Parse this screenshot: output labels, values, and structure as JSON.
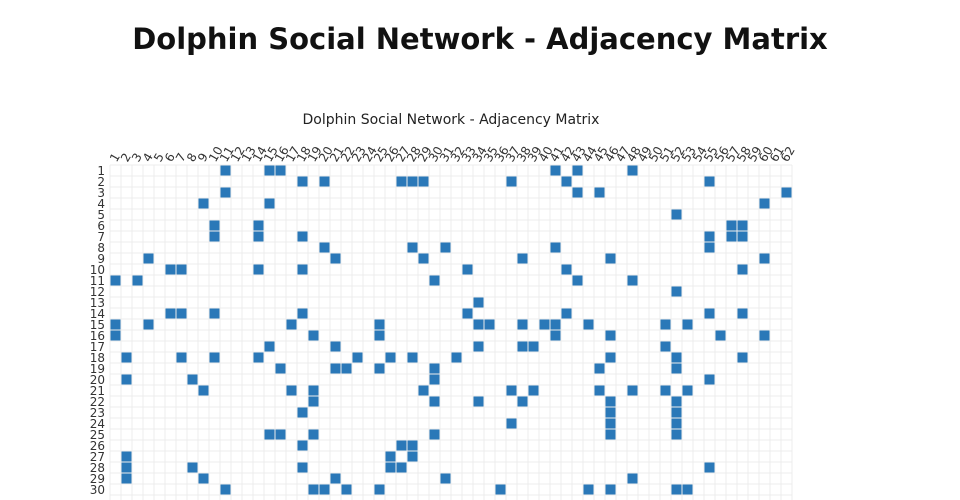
{
  "page_title": "Dolphin Social Network - Adjacency Matrix",
  "chart_data": {
    "type": "matrix",
    "title": "Dolphin Social Network - Adjacency Matrix",
    "color": "#2a78b8",
    "column_labels": [
      "1",
      "2",
      "3",
      "4",
      "5",
      "6",
      "7",
      "8",
      "9",
      "10",
      "11",
      "12",
      "13",
      "14",
      "15",
      "16",
      "17",
      "18",
      "19",
      "20",
      "21",
      "22",
      "23",
      "24",
      "25",
      "26",
      "27",
      "28",
      "29",
      "30",
      "31",
      "32",
      "33",
      "34",
      "35",
      "36",
      "37",
      "38",
      "39",
      "40",
      "41",
      "42",
      "43",
      "44",
      "45",
      "46",
      "47",
      "48",
      "49",
      "50",
      "51",
      "52",
      "53",
      "54",
      "55",
      "56",
      "57",
      "58",
      "59",
      "60",
      "61",
      "62"
    ],
    "row_labels": [
      "1",
      "2",
      "3",
      "4",
      "5",
      "6",
      "7",
      "8",
      "9",
      "10",
      "11",
      "12",
      "13",
      "14",
      "15",
      "16",
      "17",
      "18",
      "19",
      "20",
      "21",
      "22",
      "23",
      "24",
      "25",
      "26",
      "27",
      "28",
      "29",
      "30"
    ],
    "links": [
      [
        11,
        15,
        16,
        41,
        43,
        48
      ],
      [
        18,
        20,
        27,
        28,
        29,
        37,
        42,
        55
      ],
      [
        11,
        43,
        45,
        62
      ],
      [
        9,
        15,
        60
      ],
      [
        52
      ],
      [
        10,
        14,
        57,
        58
      ],
      [
        10,
        14,
        18,
        55,
        57,
        58
      ],
      [
        20,
        28,
        31,
        41,
        55
      ],
      [
        4,
        21,
        29,
        38,
        46,
        60
      ],
      [
        6,
        7,
        14,
        18,
        33,
        42,
        58
      ],
      [
        1,
        3,
        30,
        43,
        48
      ],
      [
        52
      ],
      [
        34
      ],
      [
        6,
        7,
        10,
        18,
        33,
        42,
        55,
        58
      ],
      [
        1,
        4,
        17,
        25,
        34,
        35,
        38,
        40,
        41,
        44,
        51,
        53
      ],
      [
        1,
        19,
        25,
        41,
        46,
        56,
        60
      ],
      [
        15,
        21,
        34,
        38,
        39,
        51
      ],
      [
        2,
        7,
        10,
        14,
        23,
        26,
        28,
        32,
        46,
        52,
        58
      ],
      [
        16,
        21,
        22,
        25,
        30,
        45,
        52
      ],
      [
        2,
        8,
        30,
        55
      ],
      [
        9,
        17,
        19,
        29,
        37,
        39,
        45,
        48,
        51,
        53
      ],
      [
        19,
        30,
        34,
        38,
        46,
        52
      ],
      [
        18,
        46,
        52
      ],
      [
        37,
        46,
        52
      ],
      [
        15,
        16,
        19,
        30,
        46,
        52
      ],
      [
        18,
        27,
        28
      ],
      [
        2,
        26,
        28
      ],
      [
        2,
        8,
        18,
        26,
        27,
        55
      ],
      [
        2,
        9,
        21,
        31,
        48
      ],
      [
        11,
        19,
        20,
        22,
        25,
        36,
        44,
        46,
        52,
        53
      ]
    ]
  }
}
